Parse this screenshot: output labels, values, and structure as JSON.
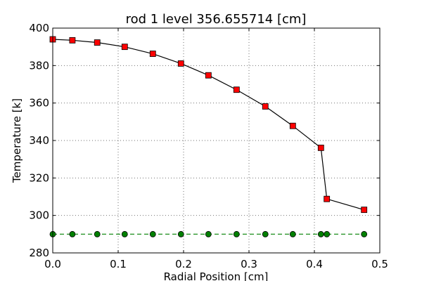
{
  "chart_data": {
    "type": "line",
    "title": "rod 1 level 356.655714 [cm]",
    "xlabel": "Radial Position [cm]",
    "ylabel": "Temperature [k]",
    "xlim": [
      0.0,
      0.5
    ],
    "ylim": [
      280,
      400
    ],
    "xticks": [
      "0.0",
      "0.1",
      "0.2",
      "0.3",
      "0.4",
      "0.5"
    ],
    "yticks": [
      "280",
      "300",
      "320",
      "340",
      "360",
      "380",
      "400"
    ],
    "grid": true,
    "series": [
      {
        "color": "#000000",
        "marker_color": "#ff0000",
        "marker": "square",
        "line": "solid",
        "x": [
          0.0,
          0.03,
          0.068,
          0.11,
          0.153,
          0.196,
          0.238,
          0.281,
          0.325,
          0.367,
          0.41,
          0.419,
          0.476
        ],
        "y": [
          394.0,
          393.5,
          392.3,
          390.0,
          386.3,
          381.1,
          374.8,
          367.1,
          358.2,
          347.8,
          336.1,
          308.8,
          303.0
        ]
      },
      {
        "color": "#008000",
        "marker_color": "#008000",
        "marker": "circle",
        "line": "dashed",
        "x": [
          0.0,
          0.03,
          0.068,
          0.11,
          0.153,
          0.196,
          0.238,
          0.281,
          0.325,
          0.367,
          0.41,
          0.419,
          0.476
        ],
        "y": [
          290,
          290,
          290,
          290,
          290,
          290,
          290,
          290,
          290,
          290,
          290,
          290,
          290
        ]
      }
    ]
  }
}
